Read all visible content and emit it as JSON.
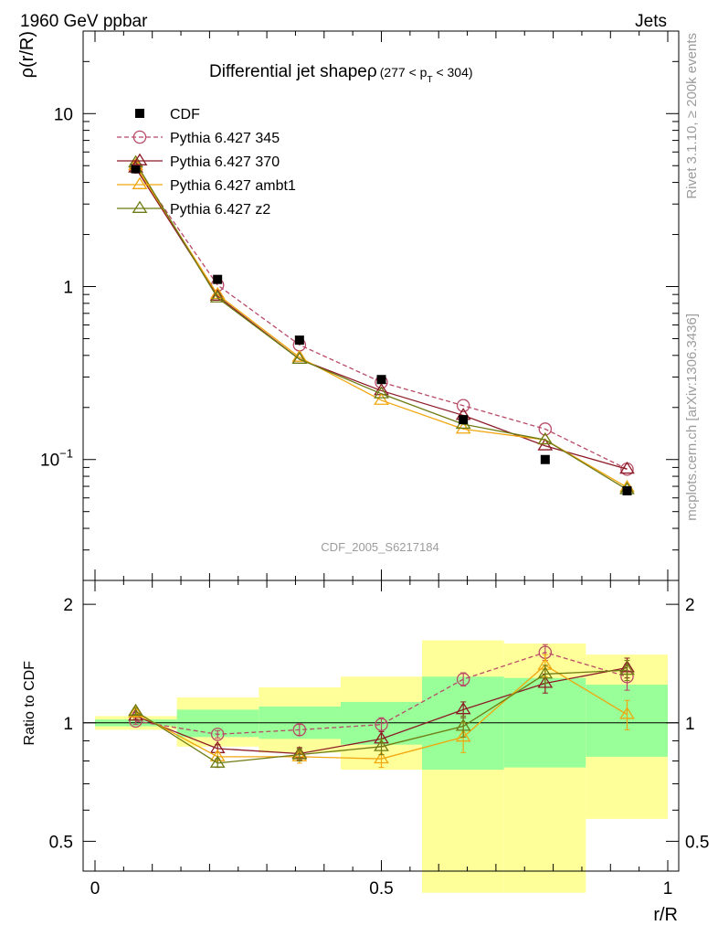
{
  "header": {
    "left": "1960 GeV ppbar",
    "right": "Jets"
  },
  "side_labels": {
    "rivet": "Rivet 3.1.10, ≥ 200k events",
    "mcplots": "mcplots.cern.ch [arXiv:1306.3436]"
  },
  "watermark": "CDF_2005_S6217184",
  "chart_data": {
    "type": "line",
    "title": "Differential jet shapeρ",
    "title_range": {
      "pre": "(277 < p",
      "sub": "T",
      "post": " < 304)"
    },
    "xlabel": "r/R",
    "ylabel_main": "ρ(r/R)",
    "ylabel_ratio": "Ratio to CDF",
    "xlim": [
      0,
      1
    ],
    "ylim_main": [
      0.02,
      30
    ],
    "ylim_ratio": [
      0.42,
      2.3
    ],
    "x_ticks": [
      {
        "v": 0,
        "label": "0"
      },
      {
        "v": 0.5,
        "label": "0.5"
      },
      {
        "v": 1,
        "label": "1"
      }
    ],
    "y_ticks_main": [
      {
        "v": 0.1,
        "base": "10",
        "exp": "−1"
      },
      {
        "v": 1,
        "label": "1"
      },
      {
        "v": 10,
        "label": "10"
      }
    ],
    "y_ticks_ratio": [
      {
        "v": 0.5,
        "label": "0.5"
      },
      {
        "v": 1,
        "label": "1"
      },
      {
        "v": 2,
        "label": "2"
      }
    ],
    "x": [
      0.071,
      0.214,
      0.357,
      0.5,
      0.643,
      0.786,
      0.929
    ],
    "bins": [
      [
        0.0,
        0.143
      ],
      [
        0.143,
        0.286
      ],
      [
        0.286,
        0.429
      ],
      [
        0.429,
        0.571
      ],
      [
        0.571,
        0.714
      ],
      [
        0.714,
        0.857
      ],
      [
        0.857,
        1.0
      ]
    ],
    "data": {
      "name": "CDF",
      "values": [
        4.8,
        1.1,
        0.49,
        0.29,
        0.17,
        0.1,
        0.066
      ]
    },
    "bands": {
      "inner": [
        [
          0.98,
          1.02
        ],
        [
          0.92,
          1.08
        ],
        [
          0.91,
          1.1
        ],
        [
          0.88,
          1.13
        ],
        [
          0.76,
          1.31
        ],
        [
          0.77,
          1.3
        ],
        [
          0.82,
          1.25
        ]
      ],
      "outer": [
        [
          0.96,
          1.04
        ],
        [
          0.87,
          1.16
        ],
        [
          0.84,
          1.23
        ],
        [
          0.76,
          1.31
        ],
        [
          0.37,
          1.62
        ],
        [
          0.37,
          1.59
        ],
        [
          0.57,
          1.49
        ]
      ]
    },
    "series": [
      {
        "name": "Pythia 6.427 345",
        "color": "#b84a67",
        "marker": "circle",
        "dashed": true,
        "values": [
          4.9,
          1.02,
          0.46,
          0.28,
          0.205,
          0.15,
          0.088
        ],
        "ratio": [
          1.01,
          0.935,
          0.96,
          0.99,
          1.29,
          1.51,
          1.31
        ],
        "ratio_err": [
          0.02,
          0.02,
          0.03,
          0.04,
          0.05,
          0.07,
          0.1
        ]
      },
      {
        "name": "Pythia 6.427 370",
        "color": "#8b1b26",
        "marker": "triangle",
        "dashed": false,
        "values": [
          4.85,
          0.88,
          0.38,
          0.25,
          0.18,
          0.12,
          0.088
        ],
        "ratio": [
          1.04,
          0.86,
          0.835,
          0.91,
          1.08,
          1.26,
          1.38
        ],
        "ratio_err": [
          0.02,
          0.02,
          0.03,
          0.04,
          0.05,
          0.07,
          0.08
        ]
      },
      {
        "name": "Pythia 6.427 ambt1",
        "color": "#f0a60e",
        "marker": "triangle",
        "dashed": false,
        "values": [
          5.0,
          0.9,
          0.39,
          0.22,
          0.15,
          0.13,
          0.069
        ],
        "ratio": [
          1.06,
          0.82,
          0.82,
          0.81,
          0.92,
          1.4,
          1.05
        ],
        "ratio_err": [
          0.02,
          0.02,
          0.03,
          0.04,
          0.08,
          0.09,
          0.09
        ]
      },
      {
        "name": "Pythia 6.427 z2",
        "color": "#6e7a12",
        "marker": "triangle",
        "dashed": false,
        "values": [
          5.2,
          0.86,
          0.38,
          0.24,
          0.16,
          0.13,
          0.067
        ],
        "ratio": [
          1.07,
          0.79,
          0.83,
          0.87,
          0.98,
          1.33,
          1.36
        ],
        "ratio_err": [
          0.02,
          0.02,
          0.03,
          0.04,
          0.06,
          0.07,
          0.08
        ]
      }
    ]
  }
}
